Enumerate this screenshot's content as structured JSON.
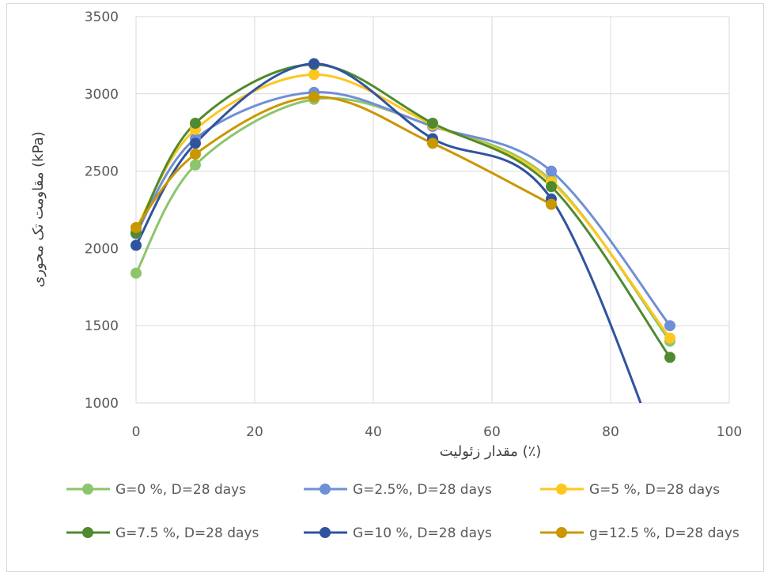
{
  "chart_data": {
    "type": "line",
    "title": "",
    "xlabel": "مقدار زئولیت (٪)",
    "ylabel": "مقاومت تک محوری (kPa)",
    "xlim": [
      0,
      100
    ],
    "ylim": [
      1000,
      3500
    ],
    "xticks": [
      "0",
      "20",
      "40",
      "60",
      "80",
      "100"
    ],
    "yticks": [
      "1000",
      "1500",
      "2000",
      "2500",
      "3000",
      "3500"
    ],
    "grid": true,
    "legend_position": "bottom",
    "x": [
      0,
      10,
      30,
      50,
      70,
      90
    ],
    "series": [
      {
        "name": "G=0 %,  D=28 days",
        "color": "#8cc56b",
        "values": [
          1840,
          2540,
          2965,
          2790,
          2440,
          1400
        ]
      },
      {
        "name": "G=2.5%, D=28 days",
        "color": "#6f8fd6",
        "values": [
          2095,
          2710,
          3010,
          2790,
          2500,
          1500
        ]
      },
      {
        "name": "G=5 %, D=28 days",
        "color": "#ffc61f",
        "values": [
          2125,
          2770,
          3125,
          2800,
          2430,
          1420
        ]
      },
      {
        "name": "G=7.5 %, D=28 days",
        "color": "#4f8a2f",
        "values": [
          2100,
          2810,
          3190,
          2810,
          2400,
          1295
        ]
      },
      {
        "name": "G=10 %, D=28 days",
        "color": "#2f539f",
        "values": [
          2020,
          2680,
          3195,
          2710,
          2320,
          500
        ]
      },
      {
        "name": "g=12.5 %, D=28 days",
        "color": "#c99700",
        "values": [
          2135,
          2610,
          2980,
          2680,
          2285,
          null
        ]
      }
    ]
  }
}
